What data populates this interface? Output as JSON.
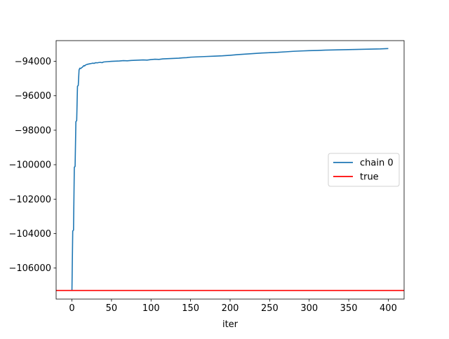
{
  "chart_data": {
    "type": "line",
    "title": "",
    "xlabel": "iter",
    "ylabel": "",
    "xlim": [
      -20,
      420
    ],
    "ylim": [
      -107800,
      -92800
    ],
    "xticks": [
      0,
      50,
      100,
      150,
      200,
      250,
      300,
      350,
      400
    ],
    "yticks": [
      -106000,
      -104000,
      -102000,
      -100000,
      -98000,
      -96000,
      -94000
    ],
    "grid": false,
    "legend_position": "center-right",
    "series": [
      {
        "name": "chain 0",
        "color": "#1f77b4",
        "x": [
          0,
          1,
          2,
          3,
          4,
          5,
          6,
          7,
          8,
          9,
          10,
          11,
          12,
          13,
          14,
          15,
          16,
          17,
          18,
          19,
          20,
          22,
          24,
          26,
          28,
          30,
          32,
          34,
          36,
          38,
          40,
          45,
          50,
          55,
          60,
          65,
          70,
          75,
          80,
          85,
          90,
          95,
          100,
          105,
          110,
          115,
          120,
          125,
          130,
          135,
          140,
          145,
          150,
          160,
          170,
          180,
          190,
          200,
          210,
          220,
          230,
          240,
          250,
          260,
          270,
          280,
          290,
          300,
          310,
          320,
          330,
          340,
          350,
          360,
          370,
          380,
          390,
          400
        ],
        "y": [
          -107300,
          -103850,
          -103800,
          -100150,
          -100100,
          -97500,
          -97450,
          -95450,
          -95400,
          -94500,
          -94400,
          -94420,
          -94380,
          -94350,
          -94300,
          -94250,
          -94270,
          -94220,
          -94200,
          -94180,
          -94170,
          -94150,
          -94130,
          -94110,
          -94120,
          -94080,
          -94090,
          -94070,
          -94060,
          -94080,
          -94040,
          -94020,
          -94000,
          -93990,
          -93980,
          -93960,
          -93970,
          -93950,
          -93940,
          -93930,
          -93920,
          -93930,
          -93900,
          -93880,
          -93890,
          -93860,
          -93850,
          -93840,
          -93830,
          -93820,
          -93800,
          -93790,
          -93760,
          -93740,
          -93720,
          -93700,
          -93680,
          -93650,
          -93610,
          -93580,
          -93550,
          -93520,
          -93500,
          -93480,
          -93450,
          -93420,
          -93400,
          -93380,
          -93370,
          -93350,
          -93340,
          -93330,
          -93320,
          -93310,
          -93300,
          -93290,
          -93280,
          -93260
        ]
      },
      {
        "name": "true",
        "color": "#ff0000",
        "y_constant": -107300
      }
    ]
  }
}
